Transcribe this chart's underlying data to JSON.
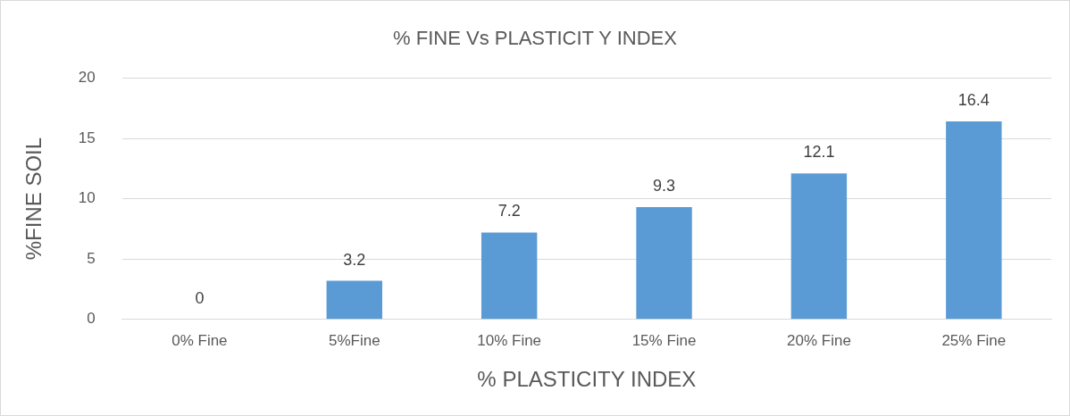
{
  "chart_data": {
    "type": "bar",
    "title": "% FINE Vs PLASTICIT Y INDEX",
    "xlabel": "% PLASTICITY INDEX",
    "ylabel": "%FINE SOIL",
    "categories": [
      "0% Fine",
      "5%Fine",
      "10% Fine",
      "15% Fine",
      "20% Fine",
      "25% Fine"
    ],
    "values": [
      0,
      3.2,
      7.2,
      9.3,
      12.1,
      16.4
    ],
    "color": "#5b9bd5",
    "ylim": [
      0,
      20
    ],
    "yticks": [
      0,
      5,
      10,
      15,
      20
    ],
    "grid": "y",
    "data_labels": true,
    "legend": false
  }
}
